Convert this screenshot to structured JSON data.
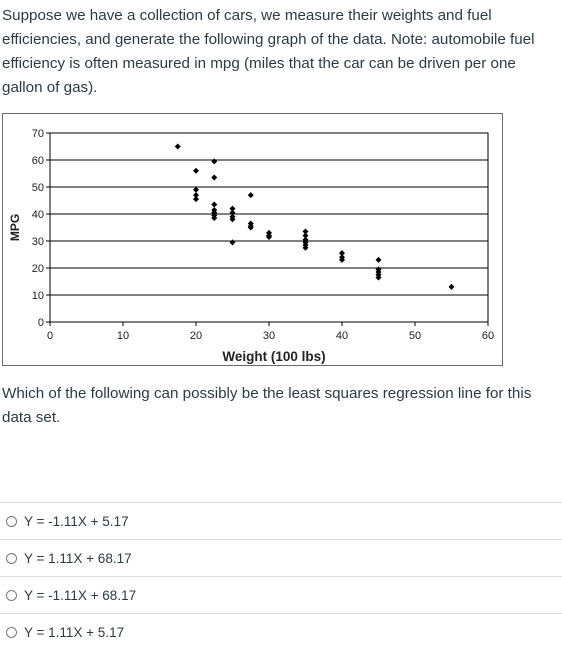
{
  "question": {
    "intro": "Suppose we have a collection of cars, we measure their weights and fuel efficiencies, and generate the following graph of the data. Note: automobile fuel efficiency is often measured in mpg (miles that the car can be driven per one gallon of gas).",
    "prompt": "Which of the following can possibly be the least squares regression line for this data set."
  },
  "answers": [
    {
      "label": "Y = -1.11X + 5.17"
    },
    {
      "label": "Y = 1.11X + 68.17"
    },
    {
      "label": "Y = -1.11X + 68.17"
    },
    {
      "label": "Y = 1.11X + 5.17"
    }
  ],
  "chart_data": {
    "type": "scatter",
    "title": "",
    "xlabel": "Weight (100 lbs)",
    "ylabel": "MPG",
    "xlim": [
      0,
      60
    ],
    "ylim": [
      0,
      70
    ],
    "xticks": [
      0,
      10,
      20,
      30,
      40,
      50,
      60
    ],
    "yticks": [
      0,
      10,
      20,
      30,
      40,
      50,
      60,
      70
    ],
    "grid": "horizontal",
    "points": [
      [
        17.5,
        65
      ],
      [
        20,
        56
      ],
      [
        20,
        49
      ],
      [
        20,
        47
      ],
      [
        20,
        45.5
      ],
      [
        22.5,
        59.5
      ],
      [
        22.5,
        53.5
      ],
      [
        22.5,
        43.5
      ],
      [
        22.5,
        41.5
      ],
      [
        22.5,
        40.5
      ],
      [
        22.5,
        39.5
      ],
      [
        22.5,
        38.5
      ],
      [
        25,
        42
      ],
      [
        25,
        40.5
      ],
      [
        25,
        39
      ],
      [
        25,
        38
      ],
      [
        25,
        29.5
      ],
      [
        27.5,
        47
      ],
      [
        27.5,
        36.5
      ],
      [
        27.5,
        35.5
      ],
      [
        27.5,
        35
      ],
      [
        30,
        33
      ],
      [
        30,
        32
      ],
      [
        30,
        31.5
      ],
      [
        35,
        33.5
      ],
      [
        35,
        32
      ],
      [
        35,
        30.5
      ],
      [
        35,
        29.5
      ],
      [
        35,
        28.5
      ],
      [
        35,
        27.5
      ],
      [
        40,
        25.5
      ],
      [
        40,
        24
      ],
      [
        40,
        23
      ],
      [
        45,
        23
      ],
      [
        45,
        19.5
      ],
      [
        45,
        18.5
      ],
      [
        45,
        17.5
      ],
      [
        45,
        16.5
      ],
      [
        55,
        13
      ]
    ]
  }
}
